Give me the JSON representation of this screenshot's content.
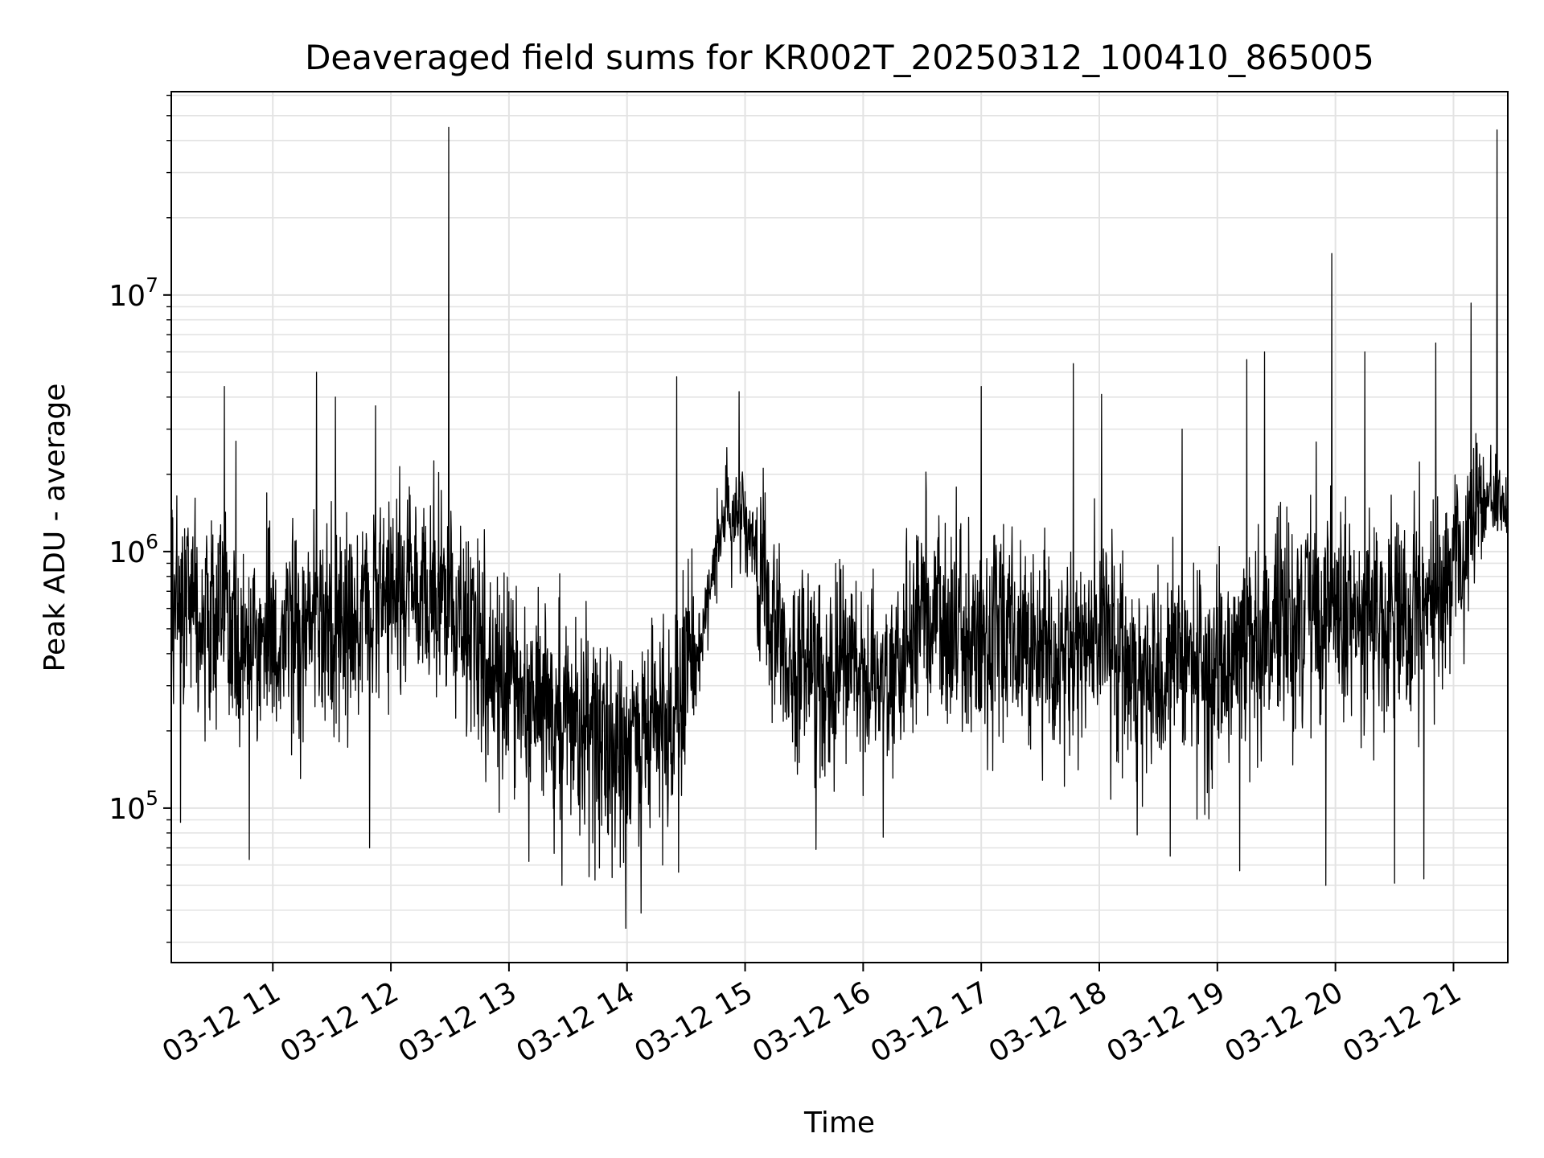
{
  "chart_data": {
    "type": "line",
    "title": "Deaveraged field sums for KR002T_20250312_100410_865005",
    "xlabel": "Time",
    "ylabel": "Peak ADU - average",
    "yscale": "log",
    "ylim": [
      25000,
      62000000
    ],
    "xlim_hours": [
      10.14,
      21.46
    ],
    "grid": true,
    "x_ticks": [
      {
        "hour": 11,
        "label": "03-12 11"
      },
      {
        "hour": 12,
        "label": "03-12 12"
      },
      {
        "hour": 13,
        "label": "03-12 13"
      },
      {
        "hour": 14,
        "label": "03-12 14"
      },
      {
        "hour": 15,
        "label": "03-12 15"
      },
      {
        "hour": 16,
        "label": "03-12 16"
      },
      {
        "hour": 17,
        "label": "03-12 17"
      },
      {
        "hour": 18,
        "label": "03-12 18"
      },
      {
        "hour": 19,
        "label": "03-12 19"
      },
      {
        "hour": 20,
        "label": "03-12 20"
      },
      {
        "hour": 21,
        "label": "03-12 21"
      }
    ],
    "y_ticks": [
      {
        "value": 100000,
        "base": "10",
        "exp": "5"
      },
      {
        "value": 1000000,
        "base": "10",
        "exp": "6"
      },
      {
        "value": 10000000,
        "base": "10",
        "exp": "7"
      }
    ],
    "series": [
      {
        "name": "Deaveraged field sum",
        "color": "#000000",
        "baseline_hours": [
          10.14,
          10.6,
          11.0,
          11.5,
          12.0,
          12.4,
          12.8,
          13.2,
          13.6,
          13.9,
          14.3,
          14.6,
          14.85,
          15.0,
          15.3,
          15.6,
          16.0,
          16.2,
          16.5,
          16.8,
          17.2,
          17.6,
          18.0,
          18.3,
          18.7,
          19.0,
          19.4,
          19.8,
          20.2,
          20.6,
          21.0,
          21.2,
          21.46
        ],
        "baseline_values": [
          700000,
          500000,
          450000,
          500000,
          700000,
          650000,
          380000,
          280000,
          220000,
          170000,
          200000,
          400000,
          1500000,
          1400000,
          400000,
          300000,
          350000,
          300000,
          600000,
          500000,
          450000,
          350000,
          500000,
          300000,
          400000,
          350000,
          450000,
          600000,
          550000,
          550000,
          800000,
          1500000,
          1600000
        ],
        "spikes": [
          {
            "hour": 12.49,
            "value": 45000000
          },
          {
            "hour": 21.37,
            "value": 44000000
          },
          {
            "hour": 19.97,
            "value": 14500000
          },
          {
            "hour": 21.15,
            "value": 9300000
          },
          {
            "hour": 20.85,
            "value": 6500000
          },
          {
            "hour": 20.25,
            "value": 6000000
          },
          {
            "hour": 19.4,
            "value": 6000000
          },
          {
            "hour": 19.25,
            "value": 5600000
          },
          {
            "hour": 17.78,
            "value": 5400000
          },
          {
            "hour": 11.37,
            "value": 5000000
          },
          {
            "hour": 14.42,
            "value": 4800000
          },
          {
            "hour": 10.59,
            "value": 4400000
          },
          {
            "hour": 17.0,
            "value": 4400000
          },
          {
            "hour": 18.02,
            "value": 4100000
          },
          {
            "hour": 11.53,
            "value": 4000000
          },
          {
            "hour": 14.95,
            "value": 4200000
          },
          {
            "hour": 11.87,
            "value": 3700000
          },
          {
            "hour": 18.7,
            "value": 3000000
          },
          {
            "hour": 13.99,
            "value": 34000
          },
          {
            "hour": 14.12,
            "value": 39000
          },
          {
            "hour": 13.45,
            "value": 50000
          },
          {
            "hour": 13.68,
            "value": 54000
          },
          {
            "hour": 14.3,
            "value": 60000
          },
          {
            "hour": 13.17,
            "value": 62000
          },
          {
            "hour": 10.8,
            "value": 63000
          },
          {
            "hour": 11.82,
            "value": 70000
          },
          {
            "hour": 19.92,
            "value": 50000
          },
          {
            "hour": 20.5,
            "value": 51000
          },
          {
            "hour": 20.75,
            "value": 53000
          },
          {
            "hour": 19.19,
            "value": 57000
          },
          {
            "hour": 18.6,
            "value": 65000
          },
          {
            "hour": 15.6,
            "value": 69000
          },
          {
            "hour": 10.22,
            "value": 88000
          },
          {
            "hour": 16.17,
            "value": 77000
          }
        ]
      }
    ]
  }
}
